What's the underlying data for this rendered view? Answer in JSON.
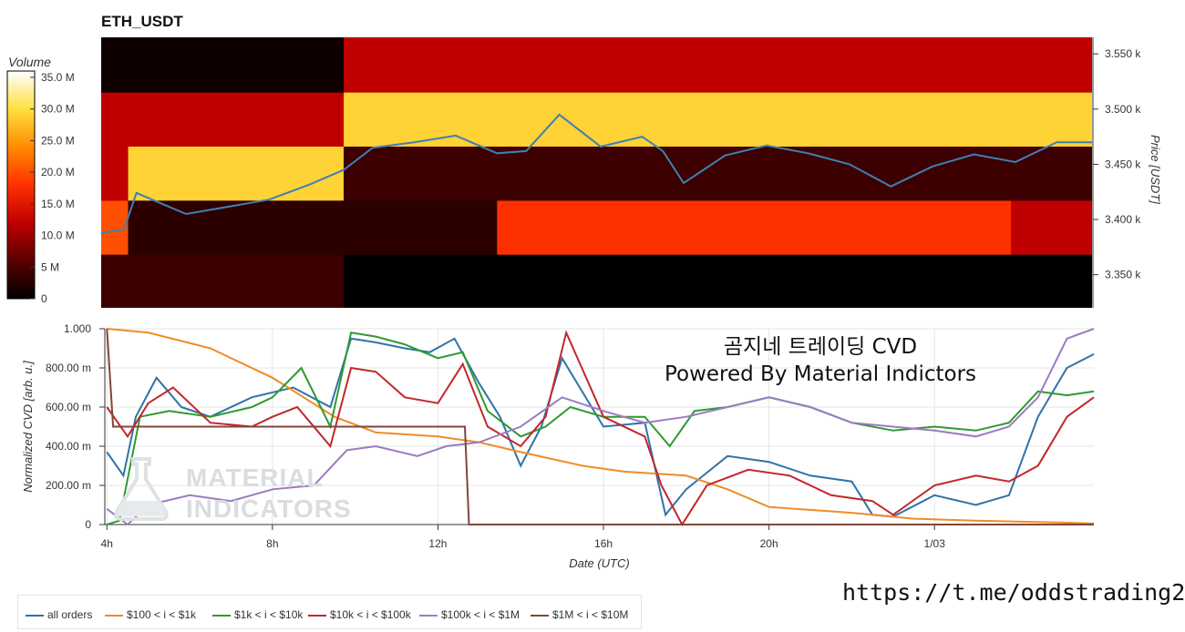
{
  "header": {
    "title": "ETH_USDT"
  },
  "colorbar": {
    "label": "Volume",
    "ticks": [
      "35.0 M",
      "30.0 M",
      "25.0 M",
      "20.0 M",
      "15.0 M",
      "10.0 M",
      "5 M",
      "0"
    ],
    "tick_values": [
      35,
      30,
      25,
      20,
      15,
      10,
      5,
      0
    ],
    "range": [
      0,
      36
    ],
    "colors": [
      "#000000",
      "#5a0000",
      "#c00000",
      "#ff3000",
      "#ff8c00",
      "#ffe040",
      "#ffffff"
    ]
  },
  "overlay": {
    "line1": "곰지네 트레이딩 CVD",
    "line2": "Powered By Material Indictors",
    "link": "https://t.me/oddstrading2"
  },
  "watermark": {
    "line1": "MATERIAL",
    "line2": "INDICATORS"
  },
  "legend": [
    {
      "name": "all orders",
      "color": "#2f73a7"
    },
    {
      "name": "$100 < i < $1k",
      "color": "#f08c26"
    },
    {
      "name": "$1k < i < $10k",
      "color": "#2f9a30"
    },
    {
      "name": "$10k < i < $100k",
      "color": "#c3262b"
    },
    {
      "name": "$100k < i < $1M",
      "color": "#9b7cc0"
    },
    {
      "name": "$1M < i < $10M",
      "color": "#80463a"
    }
  ],
  "chart_data": [
    {
      "type": "heatmap",
      "title": "ETH_USDT",
      "ylabel": "Price [USDT]",
      "ylim": [
        3320,
        3565
      ],
      "y_ticks": [
        "3.550 k",
        "3.500 k",
        "3.450 k",
        "3.400 k",
        "3.350 k"
      ],
      "y_tick_values": [
        3550,
        3500,
        3450,
        3400,
        3350
      ],
      "x_range_hours": [
        3.95,
        27.85
      ],
      "price_bands": [
        {
          "low": 3515,
          "high": 3565,
          "segments": [
            {
              "from": 3.95,
              "to": 9.8,
              "level": 1
            },
            {
              "from": 9.8,
              "to": 27.85,
              "level": 12
            }
          ]
        },
        {
          "low": 3466,
          "high": 3515,
          "segments": [
            {
              "from": 3.95,
              "to": 9.8,
              "level": 12
            },
            {
              "from": 9.8,
              "to": 27.85,
              "level": 29
            }
          ]
        },
        {
          "low": 3417,
          "high": 3466,
          "segments": [
            {
              "from": 3.95,
              "to": 4.6,
              "level": 12
            },
            {
              "from": 4.6,
              "to": 9.8,
              "level": 29
            },
            {
              "from": 9.8,
              "to": 27.85,
              "level": 4
            }
          ]
        },
        {
          "low": 3368,
          "high": 3417,
          "segments": [
            {
              "from": 3.95,
              "to": 4.6,
              "level": 20
            },
            {
              "from": 4.6,
              "to": 13.5,
              "level": 3
            },
            {
              "from": 13.5,
              "to": 25.9,
              "level": 18
            },
            {
              "from": 25.9,
              "to": 27.85,
              "level": 12
            }
          ]
        },
        {
          "low": 3320,
          "high": 3368,
          "segments": [
            {
              "from": 3.95,
              "to": 9.8,
              "level": 4
            },
            {
              "from": 9.8,
              "to": 27.85,
              "level": 0
            }
          ]
        }
      ],
      "price_line": {
        "x": [
          3.95,
          4.5,
          4.8,
          6.0,
          8.0,
          9.0,
          9.8,
          10.5,
          11.5,
          12.5,
          13.5,
          14.2,
          15.0,
          16.0,
          17.0,
          17.5,
          18.0,
          19.0,
          20.0,
          21.0,
          22.0,
          23.0,
          24.0,
          25.0,
          26.0,
          27.0,
          27.85
        ],
        "y": [
          3388,
          3391,
          3424,
          3405,
          3418,
          3432,
          3445,
          3465,
          3470,
          3476,
          3460,
          3462,
          3495,
          3466,
          3475,
          3462,
          3433,
          3458,
          3467,
          3460,
          3450,
          3430,
          3448,
          3459,
          3452,
          3470,
          3470
        ]
      }
    },
    {
      "type": "line",
      "xlabel": "Date (UTC)",
      "ylabel": "Normalized CVD [arb. u.]",
      "ylim": [
        0,
        1
      ],
      "y_ticks": [
        "0",
        "200.00 m",
        "400.00 m",
        "600.00 m",
        "800.00 m",
        "1.000"
      ],
      "y_tick_values": [
        0,
        0.2,
        0.4,
        0.6,
        0.8,
        1.0
      ],
      "x_ticks": [
        "4h",
        "8h",
        "12h",
        "16h",
        "20h",
        "1/03"
      ],
      "x_tick_values": [
        4,
        8,
        12,
        16,
        20,
        24
      ],
      "x_range_hours": [
        3.95,
        27.85
      ],
      "series": [
        {
          "name": "all orders",
          "x": [
            4.0,
            4.4,
            4.7,
            5.2,
            5.8,
            6.5,
            7.5,
            8.5,
            9.4,
            9.9,
            10.5,
            11.2,
            11.8,
            12.4,
            13.0,
            13.5,
            14.0,
            14.5,
            15.0,
            16.0,
            17.0,
            17.5,
            18.0,
            19.0,
            20.0,
            21.0,
            22.0,
            22.5,
            23.0,
            24.0,
            25.0,
            25.8,
            26.5,
            27.2,
            27.85
          ],
          "y": [
            0.37,
            0.25,
            0.55,
            0.75,
            0.6,
            0.55,
            0.65,
            0.7,
            0.6,
            0.95,
            0.93,
            0.9,
            0.88,
            0.95,
            0.72,
            0.55,
            0.3,
            0.5,
            0.85,
            0.5,
            0.52,
            0.05,
            0.18,
            0.35,
            0.32,
            0.25,
            0.22,
            0.05,
            0.04,
            0.15,
            0.1,
            0.15,
            0.55,
            0.8,
            0.87
          ]
        },
        {
          "name": "$100 < i < $1k",
          "x": [
            4.0,
            5.0,
            6.5,
            8.0,
            9.5,
            10.5,
            12.0,
            13.0,
            14.0,
            15.5,
            16.5,
            18.0,
            19.0,
            20.0,
            22.0,
            23.5,
            25.0,
            27.0,
            27.85
          ],
          "y": [
            1.0,
            0.98,
            0.9,
            0.75,
            0.55,
            0.47,
            0.45,
            0.42,
            0.37,
            0.3,
            0.27,
            0.25,
            0.18,
            0.09,
            0.06,
            0.03,
            0.02,
            0.01,
            0.005
          ]
        },
        {
          "name": "$1k < i < $10k",
          "x": [
            4.0,
            4.3,
            4.8,
            5.5,
            6.5,
            7.5,
            8.0,
            8.7,
            9.4,
            9.9,
            10.5,
            11.2,
            12.0,
            12.6,
            13.2,
            14.0,
            14.6,
            15.2,
            16.0,
            17.0,
            17.6,
            18.2,
            19.0,
            20.0,
            21.0,
            22.0,
            23.0,
            24.0,
            25.0,
            25.8,
            26.5,
            27.2,
            27.85
          ],
          "y": [
            0.0,
            0.02,
            0.55,
            0.58,
            0.55,
            0.6,
            0.65,
            0.8,
            0.5,
            0.98,
            0.96,
            0.92,
            0.85,
            0.88,
            0.58,
            0.45,
            0.5,
            0.6,
            0.55,
            0.55,
            0.4,
            0.58,
            0.6,
            0.65,
            0.6,
            0.52,
            0.48,
            0.5,
            0.48,
            0.52,
            0.68,
            0.66,
            0.68
          ]
        },
        {
          "name": "$10k < i < $100k",
          "x": [
            4.0,
            4.5,
            5.0,
            5.6,
            6.5,
            7.5,
            8.0,
            8.6,
            9.4,
            9.9,
            10.5,
            11.2,
            12.0,
            12.6,
            13.2,
            14.0,
            14.6,
            15.1,
            16.0,
            17.0,
            17.4,
            17.9,
            18.5,
            19.5,
            20.5,
            21.5,
            22.5,
            23.0,
            24.0,
            25.0,
            25.8,
            26.5,
            27.2,
            27.85
          ],
          "y": [
            0.6,
            0.45,
            0.62,
            0.7,
            0.52,
            0.5,
            0.55,
            0.6,
            0.4,
            0.8,
            0.78,
            0.65,
            0.62,
            0.82,
            0.5,
            0.4,
            0.55,
            0.98,
            0.55,
            0.45,
            0.2,
            0.0,
            0.2,
            0.28,
            0.25,
            0.15,
            0.12,
            0.05,
            0.2,
            0.25,
            0.22,
            0.3,
            0.55,
            0.65
          ]
        },
        {
          "name": "$100k < i < $1M",
          "x": [
            4.0,
            4.5,
            5.0,
            6.0,
            7.0,
            8.0,
            9.0,
            9.8,
            10.5,
            11.5,
            12.2,
            13.0,
            14.0,
            15.0,
            16.0,
            17.0,
            18.0,
            19.0,
            20.0,
            21.0,
            22.0,
            23.0,
            24.0,
            25.0,
            25.8,
            26.5,
            27.2,
            27.85
          ],
          "y": [
            0.08,
            0.0,
            0.1,
            0.15,
            0.12,
            0.18,
            0.2,
            0.38,
            0.4,
            0.35,
            0.4,
            0.42,
            0.5,
            0.65,
            0.58,
            0.52,
            0.55,
            0.6,
            0.65,
            0.6,
            0.52,
            0.5,
            0.48,
            0.45,
            0.5,
            0.65,
            0.95,
            1.0
          ]
        },
        {
          "name": "$1M < i < $10M",
          "x": [
            4.0,
            4.15,
            4.2,
            12.65,
            12.75,
            27.85
          ],
          "y": [
            1.0,
            0.5,
            0.5,
            0.5,
            0.0,
            0.0
          ]
        }
      ]
    }
  ]
}
